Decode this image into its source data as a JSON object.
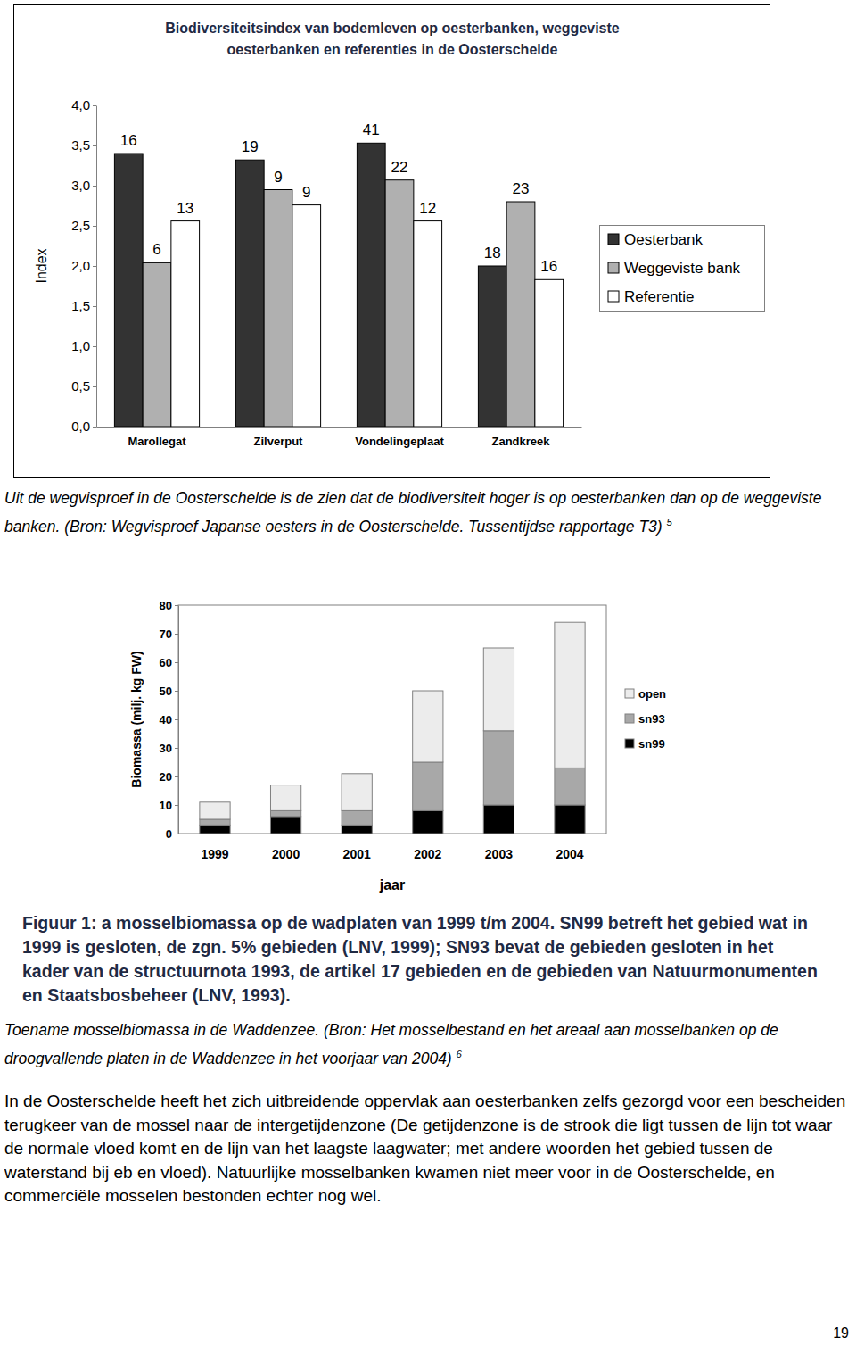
{
  "chart_data": [
    {
      "type": "bar",
      "title": "Biodiversiteitsindex van bodemleven op oesterbanken, weggeviste oesterbanken en referenties in de Oosterschelde",
      "categories": [
        "Marollegat",
        "Zilverput",
        "Vondelingeplaat",
        "Zandkreek"
      ],
      "y_label": "Index",
      "ylim": [
        0,
        4
      ],
      "yticks": [
        {
          "value": 0,
          "label": "0,0"
        },
        {
          "value": 0.5,
          "label": "0,5"
        },
        {
          "value": 1,
          "label": "1,0"
        },
        {
          "value": 1.5,
          "label": "1,5"
        },
        {
          "value": 2,
          "label": "2,0"
        },
        {
          "value": 2.5,
          "label": "2,5"
        },
        {
          "value": 3,
          "label": "3,0"
        },
        {
          "value": 3.5,
          "label": "3,5"
        },
        {
          "value": 4,
          "label": "4,0"
        }
      ],
      "legend": "right",
      "series": [
        {
          "name": "Oesterbank",
          "color": "#333333",
          "values": [
            3.4,
            3.32,
            3.53,
            2.0
          ],
          "n": [
            16,
            19,
            41,
            18
          ]
        },
        {
          "name": "Weggeviste bank",
          "color": "#b0b0b0",
          "values": [
            2.04,
            2.95,
            3.07,
            2.8
          ],
          "n": [
            6,
            9,
            22,
            23
          ]
        },
        {
          "name": "Referentie",
          "color": "#ffffff",
          "values": [
            2.56,
            2.76,
            2.56,
            1.83
          ],
          "n": [
            13,
            9,
            12,
            16
          ]
        }
      ]
    },
    {
      "type": "bar",
      "stacked": true,
      "title": "Figuur 1: a mosselbiomassa op de wadplaten van 1999 t/m 2004. SN99 betreft het gebied wat in 1999 is gesloten, de zgn. 5% gebieden (LNV, 1999); SN93 bevat de gebieden gesloten in het kader van de structuurnota 1993, de artikel 17 gebieden en de gebieden van Natuurmonumenten en Staatsbosbeheer (LNV, 1993).",
      "categories": [
        "1999",
        "2000",
        "2001",
        "2002",
        "2003",
        "2004"
      ],
      "x_label": "jaar",
      "y_label": "Biomassa (milj. kg FW)",
      "ylim": [
        0,
        80
      ],
      "yticks": [
        0,
        10,
        20,
        30,
        40,
        50,
        60,
        70,
        80
      ],
      "legend": "right",
      "series": [
        {
          "name": "sn99",
          "color": "#000000",
          "values": [
            3,
            6,
            3,
            8,
            10,
            10
          ]
        },
        {
          "name": "sn93",
          "color": "#a8a8a8",
          "values": [
            2,
            2,
            5,
            17,
            26,
            13
          ]
        },
        {
          "name": "open",
          "color": "#ececec",
          "values": [
            6,
            9,
            13,
            25,
            29,
            51
          ]
        }
      ]
    }
  ],
  "document": {
    "captions": [
      {
        "text": "Uit de wegvisproef in de Oosterschelde is de zien dat de biodiversiteit hoger is op oesterbanken dan op de weggeviste banken. (Bron: Wegvisproef Japanse oesters in de Oosterschelde. Tussentijdse rapportage T3)",
        "note": "5"
      },
      {
        "text": "Toename mosselbiomassa in de Waddenzee. (Bron: Het mosselbestand en het areaal aan mosselbanken  op de droogvallende platen in de Waddenzee in het voorjaar van 2004)",
        "note": "6"
      }
    ],
    "paragraph": "In de Oosterschelde heeft het zich uitbreidende oppervlak aan oesterbanken zelfs gezorgd voor een bescheiden terugkeer van de mossel naar de intergetijdenzone (De getijdenzone is de strook die ligt tussen de lijn tot waar de normale vloed komt en de lijn van het laagste laagwater; met andere woorden het gebied tussen de waterstand bij eb en vloed). Natuurlijke mosselbanken kwamen niet meer voor in de Oosterschelde, en commerciële mosselen bestonden echter nog wel.",
    "page_number": "19"
  }
}
